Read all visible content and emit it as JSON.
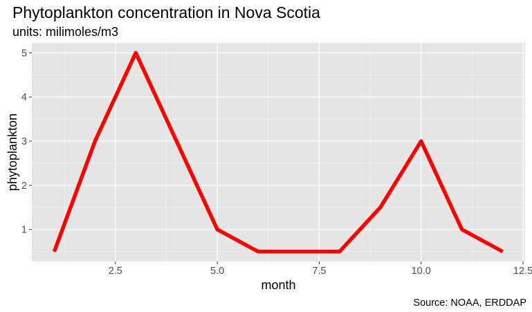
{
  "chart_data": {
    "type": "line",
    "title": "Phytoplankton concentration in Nova Scotia",
    "subtitle": "units: milimoles/m3",
    "xlabel": "month",
    "ylabel": "phytoplankton",
    "caption": "Source: NOAA, ERDDAP",
    "x": [
      1,
      2,
      3,
      4,
      5,
      6,
      7,
      8,
      9,
      10,
      11,
      12
    ],
    "series": [
      {
        "values": [
          0.5,
          3,
          5,
          3,
          1,
          0.5,
          0.5,
          0.5,
          1.5,
          3,
          1,
          0.5
        ]
      }
    ],
    "x_ticks": [
      2.5,
      5.0,
      7.5,
      10.0,
      12.5
    ],
    "x_tick_labels": [
      "2.5",
      "5.0",
      "7.5",
      "10.0",
      "12.5"
    ],
    "y_ticks": [
      1,
      2,
      3,
      4,
      5
    ],
    "y_tick_labels": [
      "1",
      "2",
      "3",
      "4",
      "5"
    ],
    "xlim": [
      0.45,
      12.55
    ],
    "ylim": [
      0.275,
      5.225
    ],
    "grid": true,
    "legend": "none",
    "colors": {
      "line": "#ff0000",
      "panel_background": "#e5e5e5",
      "grid_major": "#ffffff",
      "grid_minor": "#f2f2f2"
    }
  }
}
